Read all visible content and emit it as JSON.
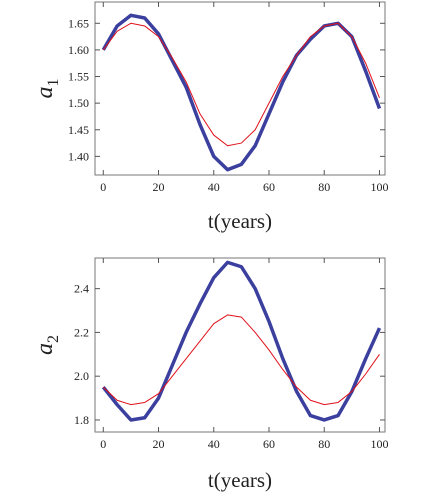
{
  "chart_data": [
    {
      "type": "line",
      "ylabel": "a",
      "ylabel_sub": "1",
      "xlabel": "t(years)",
      "x": [
        0,
        5,
        10,
        15,
        20,
        25,
        30,
        35,
        40,
        45,
        50,
        55,
        60,
        65,
        70,
        75,
        80,
        85,
        90,
        95,
        100
      ],
      "series": [
        {
          "color": "#3b3f9e",
          "line_width": 3.5,
          "values": [
            1.6,
            1.645,
            1.665,
            1.66,
            1.63,
            1.58,
            1.53,
            1.46,
            1.4,
            1.375,
            1.385,
            1.42,
            1.48,
            1.54,
            1.59,
            1.62,
            1.645,
            1.65,
            1.625,
            1.56,
            1.49
          ]
        },
        {
          "color": "#e0101a",
          "line_width": 1,
          "values": [
            1.6,
            1.635,
            1.65,
            1.645,
            1.625,
            1.585,
            1.54,
            1.48,
            1.44,
            1.42,
            1.425,
            1.45,
            1.5,
            1.55,
            1.59,
            1.625,
            1.645,
            1.65,
            1.625,
            1.575,
            1.51
          ]
        }
      ],
      "xlim": [
        -3,
        102
      ],
      "xticks": [
        0,
        20,
        40,
        60,
        80,
        100
      ],
      "ylim": [
        1.365,
        1.69
      ],
      "yticks": [
        {
          "value": 1.4,
          "label": "1.40"
        },
        1.45,
        {
          "value": 1.5,
          "label": "1.50"
        },
        1.55,
        {
          "value": 1.6,
          "label": "1.60"
        },
        1.65
      ]
    },
    {
      "type": "line",
      "ylabel": "a",
      "ylabel_sub": "2",
      "xlabel": "t(years)",
      "x": [
        0,
        5,
        10,
        15,
        20,
        25,
        30,
        35,
        40,
        45,
        50,
        55,
        60,
        65,
        70,
        75,
        80,
        85,
        90,
        95,
        100
      ],
      "series": [
        {
          "color": "#3b3f9e",
          "line_width": 3.5,
          "values": [
            1.95,
            1.87,
            1.8,
            1.81,
            1.9,
            2.05,
            2.2,
            2.33,
            2.45,
            2.52,
            2.5,
            2.4,
            2.25,
            2.08,
            1.93,
            1.82,
            1.8,
            1.82,
            1.93,
            2.08,
            2.22
          ]
        },
        {
          "color": "#e0101a",
          "line_width": 1,
          "values": [
            1.95,
            1.89,
            1.87,
            1.88,
            1.92,
            2.0,
            2.08,
            2.16,
            2.24,
            2.28,
            2.27,
            2.2,
            2.12,
            2.03,
            1.95,
            1.89,
            1.87,
            1.88,
            1.93,
            2.01,
            2.1
          ]
        }
      ],
      "xlim": [
        -3,
        102
      ],
      "xticks": [
        0,
        20,
        40,
        60,
        80,
        100
      ],
      "ylim": [
        1.745,
        2.54
      ],
      "yticks": [
        1.8,
        {
          "value": 2.0,
          "label": "2.0"
        },
        2.2,
        2.4
      ]
    }
  ]
}
